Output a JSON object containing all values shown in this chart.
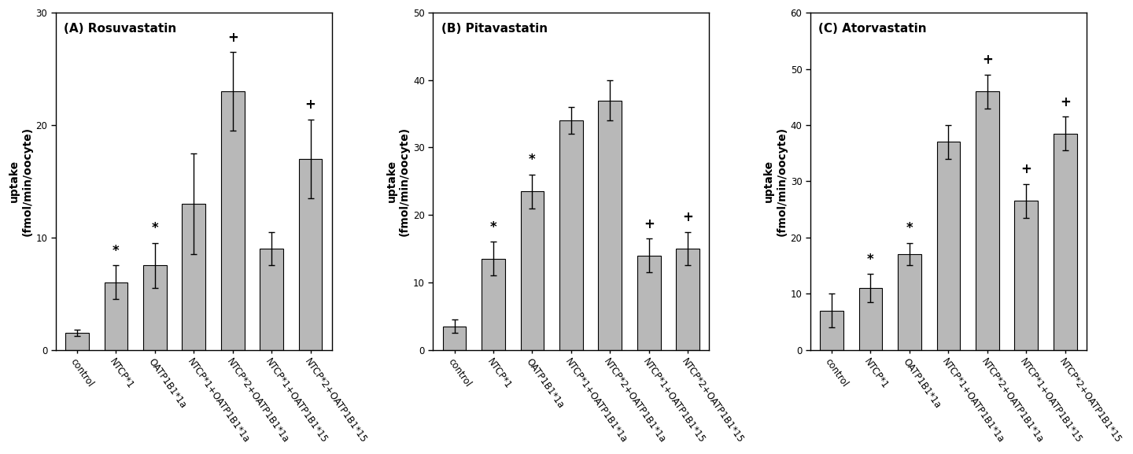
{
  "panels": [
    {
      "title": "(A) Rosuvastatin",
      "ylabel": "uptake\n(fmol/min/oocyte)",
      "ylim": [
        0,
        30
      ],
      "yticks": [
        0,
        10,
        20,
        30
      ],
      "values": [
        1.5,
        6.0,
        7.5,
        13.0,
        23.0,
        9.0,
        17.0
      ],
      "errors": [
        0.3,
        1.5,
        2.0,
        4.5,
        3.5,
        1.5,
        3.5
      ],
      "annotations": [
        "",
        "*",
        "*",
        "",
        "+",
        "",
        "+"
      ]
    },
    {
      "title": "(B) Pitavastatin",
      "ylabel": "uptake\n(fmol/min/oocyte)",
      "ylim": [
        0,
        50
      ],
      "yticks": [
        0,
        10,
        20,
        30,
        40,
        50
      ],
      "values": [
        3.5,
        13.5,
        23.5,
        34.0,
        37.0,
        14.0,
        15.0
      ],
      "errors": [
        1.0,
        2.5,
        2.5,
        2.0,
        3.0,
        2.5,
        2.5
      ],
      "annotations": [
        "",
        "*",
        "*",
        "",
        "",
        "+",
        "+"
      ]
    },
    {
      "title": "(C) Atorvastatin",
      "ylabel": "uptake\n(fmol/min/oocyte)",
      "ylim": [
        0,
        60
      ],
      "yticks": [
        0,
        10,
        20,
        30,
        40,
        50,
        60
      ],
      "values": [
        7.0,
        11.0,
        17.0,
        37.0,
        46.0,
        26.5,
        38.5
      ],
      "errors": [
        3.0,
        2.5,
        2.0,
        3.0,
        3.0,
        3.0,
        3.0
      ],
      "annotations": [
        "",
        "*",
        "*",
        "",
        "+",
        "+",
        "+"
      ]
    }
  ],
  "categories": [
    "control",
    "NTCP*1",
    "OATP1B1*1a",
    "NTCP*1+OATP1B1*1a",
    "NTCP*2+OATP1B1*1a",
    "NTCP*1+OATP1B1*15",
    "NTCP*2+OATP1B1*15"
  ],
  "bar_color": "#b8b8b8",
  "bar_edgecolor": "#000000",
  "bar_width": 0.6,
  "annotation_fontsize": 12,
  "tick_fontsize": 8.5,
  "label_fontsize": 10,
  "title_fontsize": 11
}
